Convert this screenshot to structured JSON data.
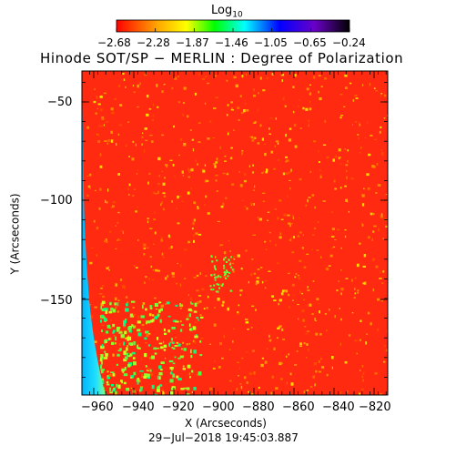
{
  "colorbar": {
    "label_base": "Log",
    "label_sub": "10",
    "ticks": [
      "−2.68",
      "−2.28",
      "−1.87",
      "−1.46",
      "−1.05",
      "−0.65",
      "−0.24"
    ]
  },
  "title": "Hinode SOT/SP − MERLIN : Degree of Polarization",
  "xaxis": {
    "label": "X (Arcseconds)",
    "ticks": [
      "−960",
      "−940",
      "−920",
      "−900",
      "−880",
      "−860",
      "−840",
      "−820"
    ]
  },
  "yaxis": {
    "label": "Y (Arcseconds)",
    "ticks": [
      "−50",
      "−100",
      "−150"
    ]
  },
  "timestamp": "29−Jul−2018 19:45:03.887",
  "colors": {
    "background_map": "#ff2a10",
    "limb": "#1ec8ff",
    "ramp": [
      "#ff0000",
      "#ffff00",
      "#00ff00",
      "#00ffff",
      "#0000ff",
      "#8000ff",
      "#000000"
    ]
  }
}
